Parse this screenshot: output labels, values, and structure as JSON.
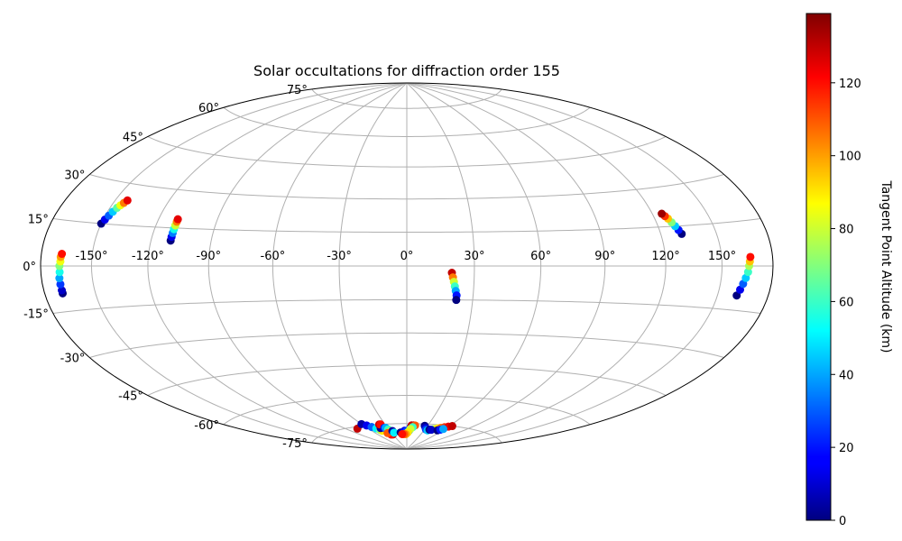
{
  "chart_data": {
    "type": "scatter",
    "projection": "hammer/aitoff (all-sky)",
    "title": "Solar occultations for diffraction order 155",
    "xlabel": "",
    "ylabel": "",
    "x_ticks": [
      "-150°",
      "-120°",
      "-90°",
      "-60°",
      "-30°",
      "0°",
      "30°",
      "60°",
      "90°",
      "120°",
      "150°"
    ],
    "y_ticks": [
      "75°",
      "60°",
      "45°",
      "30°",
      "15°",
      "0°",
      "-15°",
      "-30°",
      "-45°",
      "-60°",
      "-75°"
    ],
    "xlim": [
      -180,
      180
    ],
    "ylim": [
      -90,
      90
    ],
    "grid": true,
    "colorbar": {
      "label": "Tangent Point Altitude (km)",
      "ticks": [
        "0",
        "20",
        "40",
        "60",
        "80",
        "100",
        "120"
      ],
      "range": [
        0,
        139
      ],
      "colormap": "jet"
    },
    "series": [
      {
        "points": [
          [
            -169,
            -9,
            0
          ],
          [
            -169,
            -8,
            10
          ],
          [
            -169,
            -6,
            25
          ],
          [
            -169,
            -4,
            40
          ],
          [
            -168.5,
            -2,
            55
          ],
          [
            -168.5,
            0,
            70
          ],
          [
            -168,
            1.5,
            85
          ],
          [
            -168,
            3,
            100
          ],
          [
            -167.5,
            4,
            120
          ]
        ]
      },
      {
        "points": [
          [
            -150,
            15,
            0
          ],
          [
            -149,
            16.5,
            15
          ],
          [
            -148,
            18,
            30
          ],
          [
            -147,
            19.5,
            45
          ],
          [
            -146,
            21,
            65
          ],
          [
            -145,
            22,
            85
          ],
          [
            -144,
            23,
            105
          ],
          [
            -143,
            24,
            125
          ]
        ]
      },
      {
        "points": [
          [
            -110,
            10,
            0
          ],
          [
            -110,
            11.5,
            15
          ],
          [
            -110,
            13,
            35
          ],
          [
            -110,
            14.5,
            55
          ],
          [
            -110,
            16,
            80
          ],
          [
            -110,
            17.5,
            105
          ],
          [
            -110,
            18.5,
            125
          ]
        ]
      },
      {
        "points": [
          [
            20,
            -3,
            130
          ],
          [
            20.5,
            -5,
            105
          ],
          [
            21,
            -7,
            80
          ],
          [
            21.5,
            -9,
            60
          ],
          [
            22,
            -11,
            40
          ],
          [
            22.5,
            -13,
            20
          ],
          [
            22.5,
            -15,
            0
          ]
        ]
      },
      {
        "points": [
          [
            131,
            12,
            0
          ],
          [
            130,
            13.5,
            20
          ],
          [
            129,
            15,
            45
          ],
          [
            128,
            16.5,
            70
          ],
          [
            127,
            18,
            95
          ],
          [
            126,
            19,
            115
          ],
          [
            125,
            20,
            135
          ]
        ]
      },
      {
        "points": [
          [
            161,
            -10,
            0
          ],
          [
            162,
            -8,
            15
          ],
          [
            163,
            -6,
            30
          ],
          [
            164,
            -4,
            45
          ],
          [
            165,
            -2,
            60
          ],
          [
            165.5,
            0,
            75
          ],
          [
            166,
            1.5,
            95
          ],
          [
            166.5,
            3,
            120
          ]
        ]
      },
      {
        "points": [
          [
            -75,
            -76,
            130
          ]
        ]
      },
      {
        "points": [
          [
            -60,
            -74,
            5
          ],
          [
            -56,
            -75,
            15
          ],
          [
            -52,
            -76,
            30
          ],
          [
            -48,
            -77,
            50
          ],
          [
            -45,
            -78,
            70
          ],
          [
            -43,
            -78.5,
            90
          ]
        ]
      },
      {
        "points": [
          [
            -41,
            -77,
            5
          ],
          [
            -38,
            -75,
            130
          ],
          [
            -36,
            -75,
            120
          ],
          [
            -35,
            -77,
            20
          ],
          [
            -33,
            -77,
            40
          ],
          [
            -31,
            -78,
            60
          ],
          [
            -29,
            -79,
            80
          ],
          [
            -27,
            -80,
            100
          ],
          [
            -30,
            -81,
            130
          ],
          [
            -34,
            -81,
            120
          ],
          [
            -38,
            -80,
            110
          ]
        ]
      },
      {
        "points": [
          [
            -26,
            -79,
            5
          ],
          [
            -25,
            -80,
            50
          ]
        ]
      },
      {
        "points": [
          [
            -12,
            -80,
            0
          ],
          [
            -8,
            -80,
            8
          ],
          [
            -4,
            -79,
            15
          ],
          [
            0,
            -79,
            25
          ],
          [
            4,
            -79,
            40
          ],
          [
            6,
            -77,
            20
          ],
          [
            7,
            -76,
            130
          ],
          [
            10,
            -76,
            130
          ],
          [
            12,
            -76,
            110
          ],
          [
            9,
            -77,
            60
          ],
          [
            6,
            -78,
            80
          ],
          [
            2,
            -80,
            90
          ],
          [
            -2,
            -81,
            100
          ],
          [
            -6,
            -81,
            110
          ],
          [
            -10,
            -81,
            120
          ]
        ]
      },
      {
        "points": [
          [
            26,
            -76,
            0
          ],
          [
            29,
            -77,
            10
          ],
          [
            32,
            -78,
            25
          ],
          [
            36,
            -78.5,
            45
          ],
          [
            40,
            -78,
            60
          ],
          [
            44,
            -77.5,
            75
          ],
          [
            48,
            -77,
            90
          ],
          [
            52,
            -76.5,
            105
          ],
          [
            56,
            -76,
            115
          ],
          [
            60,
            -75.5,
            125
          ],
          [
            64,
            -75,
            130
          ]
        ]
      },
      {
        "points": [
          [
            38,
            -78,
            0
          ],
          [
            41,
            -78,
            10
          ]
        ]
      },
      {
        "points": [
          [
            52,
            -78,
            0
          ],
          [
            55,
            -77.5,
            20
          ],
          [
            58,
            -77,
            40
          ]
        ]
      }
    ]
  }
}
